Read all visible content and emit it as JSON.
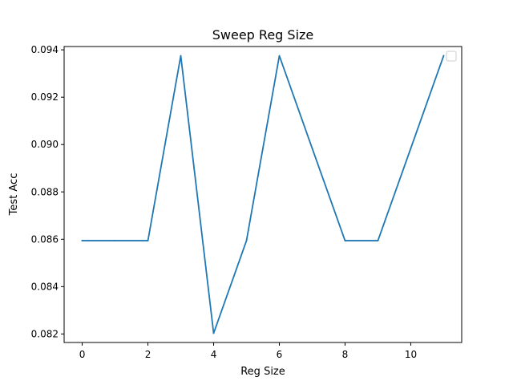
{
  "chart_data": {
    "type": "line",
    "title": "Sweep Reg Size",
    "xlabel": "Reg Size",
    "ylabel": "Test Acc",
    "x": [
      0,
      1,
      2,
      3,
      4,
      5,
      6,
      7,
      8,
      9,
      10,
      11
    ],
    "series": [
      {
        "values": [
          0.08594,
          0.08594,
          0.08594,
          0.09375,
          0.08203,
          0.08594,
          0.09375,
          0.08984,
          0.08594,
          0.08594,
          0.08984,
          0.09375
        ],
        "color": "#1f77b4"
      }
    ],
    "xlim": [
      -0.55,
      11.55
    ],
    "ylim": [
      0.08164,
      0.09414
    ],
    "xticks": [
      0,
      2,
      4,
      6,
      8,
      10
    ],
    "xtick_labels": [
      "0",
      "2",
      "4",
      "6",
      "8",
      "10"
    ],
    "yticks": [
      0.082,
      0.084,
      0.086,
      0.088,
      0.09,
      0.092,
      0.094
    ],
    "ytick_labels": [
      "0.082",
      "0.084",
      "0.086",
      "0.088",
      "0.090",
      "0.092",
      "0.094"
    ],
    "grid": false,
    "legend": {
      "placement": "top-right",
      "entries": []
    }
  }
}
